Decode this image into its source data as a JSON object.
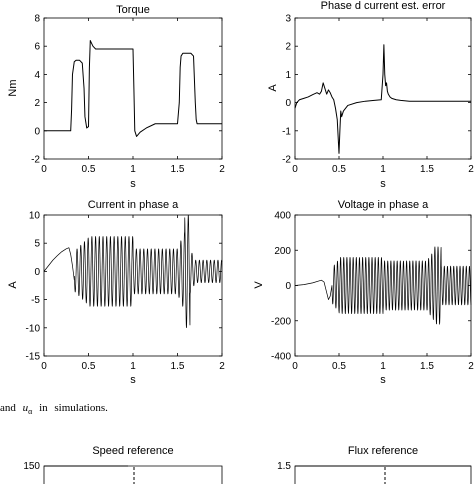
{
  "caption": {
    "prefix": "and",
    "symbol": "u",
    "subscript": "α",
    "suffix": "in simulations."
  },
  "chart_data": [
    {
      "id": "torque",
      "type": "line",
      "title": "Torque",
      "xlabel": "s",
      "ylabel": "Nm",
      "xlim": [
        0,
        2
      ],
      "ylim": [
        -2,
        8
      ],
      "xticks": [
        "0",
        "0.5",
        "1",
        "1.5",
        "2"
      ],
      "yticks": [
        "-2",
        "0",
        "2",
        "4",
        "6",
        "8"
      ],
      "grid": false,
      "series": [
        {
          "x": [
            0,
            0.3,
            0.31,
            0.32,
            0.34,
            0.36,
            0.4,
            0.43,
            0.45,
            0.46,
            0.48,
            0.5,
            0.51,
            0.52,
            0.55,
            0.58,
            0.6,
            1.0,
            1.01,
            1.02,
            1.04,
            1.08,
            1.15,
            1.25,
            1.5,
            1.52,
            1.53,
            1.54,
            1.56,
            1.58,
            1.65,
            1.68,
            1.7,
            1.71,
            1.72,
            1.75,
            1.85,
            2.0
          ],
          "y": [
            0,
            0,
            1.5,
            4.0,
            4.9,
            5.0,
            5.0,
            4.8,
            3.0,
            1.0,
            0.2,
            0.3,
            4.5,
            6.4,
            6.0,
            5.8,
            5.8,
            5.8,
            3.0,
            0.0,
            -0.4,
            -0.1,
            0.2,
            0.5,
            0.5,
            2.0,
            4.5,
            5.3,
            5.5,
            5.5,
            5.5,
            5.3,
            2.0,
            0.8,
            0.5,
            0.5,
            0.5,
            0.5
          ]
        }
      ]
    },
    {
      "id": "phase-d-error",
      "type": "line",
      "title": "Phase d current est. error",
      "xlabel": "s",
      "ylabel": "A",
      "xlim": [
        0,
        2
      ],
      "ylim": [
        -2,
        3
      ],
      "xticks": [
        "0",
        "0.5",
        "1",
        "1.5",
        "2"
      ],
      "yticks": [
        "-2",
        "-1",
        "0",
        "1",
        "2",
        "3"
      ],
      "grid": false,
      "series": [
        {
          "x": [
            0,
            0.02,
            0.05,
            0.1,
            0.15,
            0.2,
            0.25,
            0.28,
            0.3,
            0.32,
            0.34,
            0.36,
            0.38,
            0.4,
            0.42,
            0.44,
            0.46,
            0.48,
            0.49,
            0.5,
            0.51,
            0.52,
            0.53,
            0.55,
            0.6,
            0.7,
            0.8,
            0.9,
            0.98,
            1.0,
            1.01,
            1.02,
            1.03,
            1.04,
            1.05,
            1.06,
            1.08,
            1.1,
            1.15,
            1.2,
            1.3,
            1.5,
            1.7,
            2.0
          ],
          "y": [
            -0.2,
            0.0,
            0.1,
            0.15,
            0.2,
            0.28,
            0.35,
            0.3,
            0.4,
            0.7,
            0.5,
            0.3,
            0.45,
            0.35,
            0.2,
            0.1,
            -0.2,
            -0.6,
            -1.2,
            -1.8,
            -1.0,
            -0.3,
            -0.5,
            -0.3,
            -0.1,
            0.0,
            0.05,
            0.08,
            0.1,
            1.0,
            2.05,
            1.0,
            0.6,
            0.7,
            0.4,
            0.3,
            0.2,
            0.15,
            0.1,
            0.08,
            0.05,
            0.05,
            0.05,
            0.05
          ]
        }
      ]
    },
    {
      "id": "current-phase-a",
      "type": "line",
      "title": "Current in phase a",
      "xlabel": "s",
      "ylabel": "A",
      "xlim": [
        0,
        2
      ],
      "ylim": [
        -15,
        10
      ],
      "xticks": [
        "0",
        "0.5",
        "1",
        "1.5",
        "2"
      ],
      "yticks": [
        "-15",
        "-10",
        "-5",
        "0",
        "5",
        "10"
      ],
      "grid": false,
      "oscillation": {
        "pre_x": [
          0,
          0.05,
          0.1,
          0.15,
          0.2,
          0.25,
          0.28,
          0.3,
          0.32,
          0.34
        ],
        "pre_y": [
          0,
          1.0,
          2.0,
          2.8,
          3.5,
          4.0,
          4.2,
          3.0,
          1.0,
          -1.5
        ],
        "frequency_hz": 24,
        "segments": [
          {
            "x0": 0.34,
            "x1": 0.5,
            "amp0": 3.5,
            "amp1": 6.0
          },
          {
            "x0": 0.5,
            "x1": 1.0,
            "amp0": 6.2,
            "amp1": 6.2
          },
          {
            "x0": 1.0,
            "x1": 1.5,
            "amp0": 4.0,
            "amp1": 4.0
          },
          {
            "x0": 1.5,
            "x1": 1.58,
            "amp0": 4.0,
            "amp1": 7.0
          },
          {
            "x0": 1.58,
            "x1": 1.64,
            "amp0": 10.0,
            "amp1": 10.0
          },
          {
            "x0": 1.64,
            "x1": 1.7,
            "amp0": 4.0,
            "amp1": 2.0
          },
          {
            "x0": 1.7,
            "x1": 2.0,
            "amp0": 2.0,
            "amp1": 2.0
          }
        ]
      }
    },
    {
      "id": "voltage-phase-a",
      "type": "line",
      "title": "Voltage in phase a",
      "xlabel": "s",
      "ylabel": "V",
      "xlim": [
        0,
        2
      ],
      "ylim": [
        -400,
        400
      ],
      "xticks": [
        "0",
        "0.5",
        "1",
        "1.5",
        "2"
      ],
      "yticks": [
        "-400",
        "-200",
        "0",
        "200",
        "400"
      ],
      "grid": false,
      "oscillation": {
        "pre_x": [
          0,
          0.1,
          0.2,
          0.3,
          0.33,
          0.36,
          0.38,
          0.4,
          0.42
        ],
        "pre_y": [
          0,
          5,
          15,
          30,
          20,
          -40,
          -80,
          -60,
          0
        ],
        "frequency_hz": 28,
        "segments": [
          {
            "x0": 0.42,
            "x1": 0.5,
            "amp0": 100,
            "amp1": 150
          },
          {
            "x0": 0.5,
            "x1": 1.0,
            "amp0": 160,
            "amp1": 160
          },
          {
            "x0": 1.0,
            "x1": 1.5,
            "amp0": 140,
            "amp1": 140
          },
          {
            "x0": 1.5,
            "x1": 1.58,
            "amp0": 140,
            "amp1": 200
          },
          {
            "x0": 1.58,
            "x1": 1.66,
            "amp0": 220,
            "amp1": 220
          },
          {
            "x0": 1.66,
            "x1": 2.0,
            "amp0": 110,
            "amp1": 110
          }
        ]
      }
    },
    {
      "id": "speed-reference",
      "type": "line",
      "title": "Speed reference",
      "xlabel": "",
      "ylabel": "",
      "ylim_top": 150,
      "yticks": [
        "150"
      ],
      "partial": true
    },
    {
      "id": "flux-reference",
      "type": "line",
      "title": "Flux reference",
      "xlabel": "",
      "ylabel": "",
      "ylim_top": 1.5,
      "yticks": [
        "1.5"
      ],
      "partial": true
    }
  ]
}
